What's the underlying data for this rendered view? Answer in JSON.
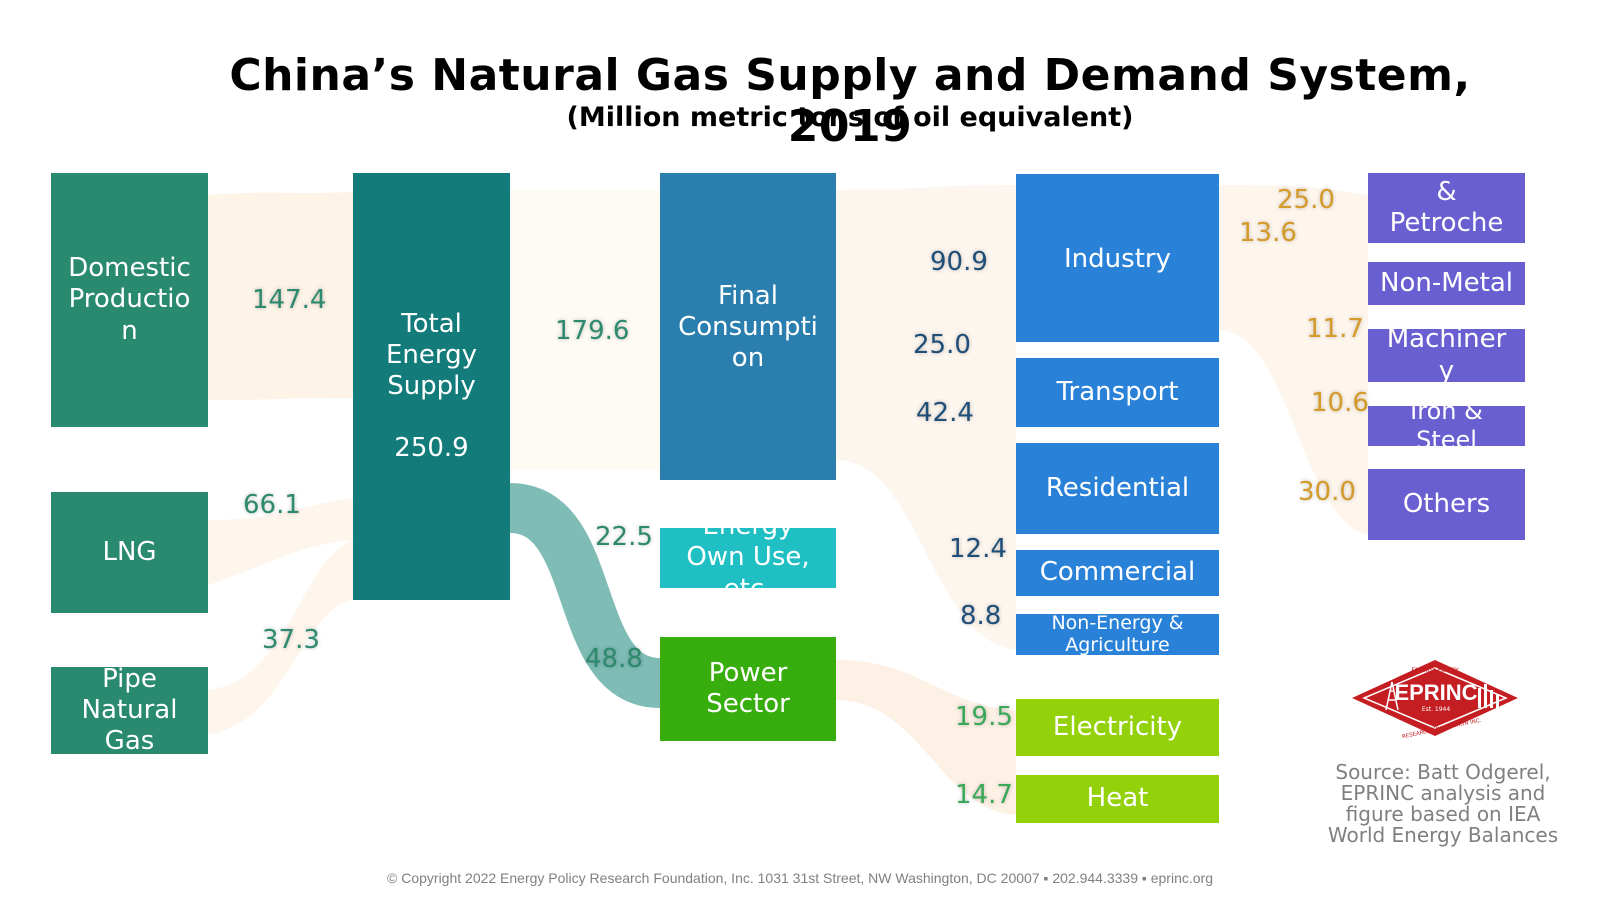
{
  "title": "China’s Natural Gas Supply and Demand System, 2019",
  "subtitle": "(Million metric tons of oil equivalent)",
  "nodes": {
    "domestic": "Domestic\nProductio\nn",
    "lng": "LNG",
    "pipe": "Pipe\nNatural\nGas",
    "total": "Total\nEnergy\nSupply\n\n250.9",
    "final": "Final\nConsumpti\non",
    "own_use": "Energy\nOwn Use,\netc.",
    "power": "Power\nSector",
    "industry": "Industry",
    "transport": "Transport",
    "residential": "Residential",
    "commercial": "Commercial",
    "nonenergy": "Non-Energy &\nAgriculture",
    "electricity": "Electricity",
    "heat": "Heat",
    "chem": "&\nPetroche\nm",
    "nonmetal": "Non-Metal",
    "machinery": "Machiner\ny",
    "iron": "Iron &\nSteel",
    "others": "Others"
  },
  "values": {
    "domestic": "147.4",
    "lng": "66.1",
    "pipe": "37.3",
    "final": "179.6",
    "own_use": "22.5",
    "power": "48.8",
    "industry": "90.9",
    "transport": "25.0",
    "residential": "42.4",
    "commercial": "12.4",
    "nonenergy": "8.8",
    "electricity": "19.5",
    "heat": "14.7",
    "chem": "25.0",
    "nonmetal": "13.6",
    "machinery": "11.7",
    "iron": "10.6",
    "others": "30.0"
  },
  "logo": {
    "name": "EPRINC",
    "established": "Est. 1944",
    "arc_top": "ENERGY POLICY",
    "arc_bottom": "RESEARCH FOUNDATION INC."
  },
  "source": "Source: Batt Odgerel,\nEPRINC analysis and\nfigure based on IEA\nWorld Energy Balances",
  "copyright": "© Copyright 2022 Energy Policy Research Foundation, Inc. 1031 31st Street, NW Washington, DC 20007 ▪ 202.944.3339 ▪ eprinc.org",
  "colors": {
    "supply": "#2a8a70",
    "total": "#137b7a",
    "final": "#2a7faf",
    "own_use": "#1fbfc4",
    "power": "#38ad0e",
    "sector": "#2a82d8",
    "power_out": "#93d10b",
    "industry_sub": "#6a5fd0",
    "power_flow": "#7fbcb6",
    "faint_flow": "#fdf3e7",
    "logo_red": "#c41e23"
  }
}
